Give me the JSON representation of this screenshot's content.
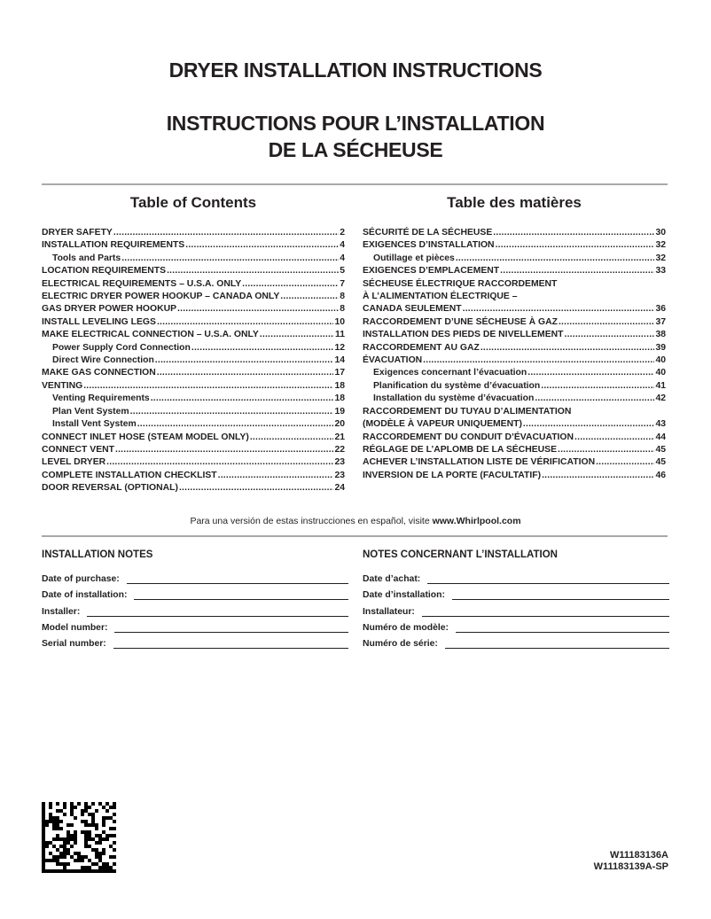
{
  "titles": {
    "en": "DRYER INSTALLATION INSTRUCTIONS",
    "fr1": "INSTRUCTIONS POUR L’INSTALLATION",
    "fr2": "DE LA SÉCHEUSE"
  },
  "toc_en": {
    "heading": "Table of Contents",
    "items": [
      {
        "label": "DRYER SAFETY",
        "page": "2"
      },
      {
        "label": "INSTALLATION REQUIREMENTS",
        "page": "4"
      },
      {
        "label": "Tools and Parts",
        "page": "4",
        "sub": true
      },
      {
        "label": "LOCATION REQUIREMENTS",
        "page": "5"
      },
      {
        "label": "ELECTRICAL REQUIREMENTS – U.S.A. ONLY",
        "page": "7"
      },
      {
        "label": "ELECTRIC DRYER POWER HOOKUP – CANADA ONLY",
        "page": "8"
      },
      {
        "label": "GAS DRYER POWER HOOKUP",
        "page": "8"
      },
      {
        "label": "INSTALL LEVELING LEGS",
        "page": "10"
      },
      {
        "label": "MAKE ELECTRICAL CONNECTION – U.S.A. ONLY",
        "page": "11"
      },
      {
        "label": "Power Supply Cord Connection",
        "page": "12",
        "sub": true
      },
      {
        "label": "Direct Wire Connection",
        "page": "14",
        "sub": true
      },
      {
        "label": "MAKE GAS CONNECTION",
        "page": "17"
      },
      {
        "label": "VENTING",
        "page": "18"
      },
      {
        "label": "Venting Requirements",
        "page": "18",
        "sub": true
      },
      {
        "label": "Plan Vent System",
        "page": "19",
        "sub": true
      },
      {
        "label": "Install Vent System",
        "page": "20",
        "sub": true
      },
      {
        "label": "CONNECT INLET HOSE (STEAM MODEL ONLY)",
        "page": "21"
      },
      {
        "label": "CONNECT VENT",
        "page": "22"
      },
      {
        "label": "LEVEL DRYER",
        "page": "23"
      },
      {
        "label": "COMPLETE INSTALLATION CHECKLIST",
        "page": "23"
      },
      {
        "label": "DOOR REVERSAL (OPTIONAL)",
        "page": "24"
      }
    ]
  },
  "toc_fr": {
    "heading": "Table des matières",
    "items": [
      {
        "label": "SÉCURITÉ DE LA SÉCHEUSE",
        "page": "30"
      },
      {
        "label": "EXIGENCES D’INSTALLATION",
        "page": "32"
      },
      {
        "label": "Outillage et pièces",
        "page": "32",
        "sub": true
      },
      {
        "label": "EXIGENCES D’EMPLACEMENT",
        "page": "33"
      },
      {
        "label": "SÉCHEUSE ÉLECTRIQUE RACCORDEMENT",
        "page": "",
        "nodots": true
      },
      {
        "label": "À L’ALIMENTATION ÉLECTRIQUE –",
        "page": "",
        "nodots": true
      },
      {
        "label": "CANADA SEULEMENT",
        "page": "36"
      },
      {
        "label": "RACCORDEMENT D’UNE SÉCHEUSE À GAZ",
        "page": "37"
      },
      {
        "label": "INSTALLATION DES PIEDS DE NIVELLEMENT",
        "page": "38"
      },
      {
        "label": "RACCORDEMENT AU GAZ",
        "page": "39"
      },
      {
        "label": "ÉVACUATION",
        "page": "40"
      },
      {
        "label": "Exigences concernant l’évacuation",
        "page": "40",
        "sub": true
      },
      {
        "label": "Planification du système d’évacuation",
        "page": "41",
        "sub": true
      },
      {
        "label": "Installation du système d’évacuation",
        "page": "42",
        "sub": true
      },
      {
        "label": "RACCORDEMENT DU TUYAU D’ALIMENTATION",
        "page": "",
        "nodots": true
      },
      {
        "label": "(MODÈLE À VAPEUR UNIQUEMENT)",
        "page": "43"
      },
      {
        "label": "RACCORDEMENT DU CONDUIT D’ÉVACUATION",
        "page": "44"
      },
      {
        "label": "RÉGLAGE DE L’APLOMB DE LA SÉCHEUSE",
        "page": "45"
      },
      {
        "label": "ACHEVER L’INSTALLATION LISTE DE VÉRIFICATION",
        "page": "45"
      },
      {
        "label": "INVERSION DE LA PORTE (FACULTATIF)",
        "page": "46"
      }
    ]
  },
  "spanish": {
    "text": "Para una versión de estas instrucciones en español, visite ",
    "site": "www.Whirlpool.com"
  },
  "notes_en": {
    "heading": "INSTALLATION NOTES",
    "fields": [
      "Date of purchase:",
      "Date of installation:",
      "Installer:",
      "Model number:",
      "Serial number:"
    ]
  },
  "notes_fr": {
    "heading": "NOTES CONCERNANT L’INSTALLATION",
    "fields": [
      "Date d’achat:",
      "Date d’installation:",
      "Installateur:",
      "Numéro de modèle:",
      "Numéro de série:"
    ]
  },
  "codes": [
    "W11183136A",
    "W11183139A-SP"
  ]
}
